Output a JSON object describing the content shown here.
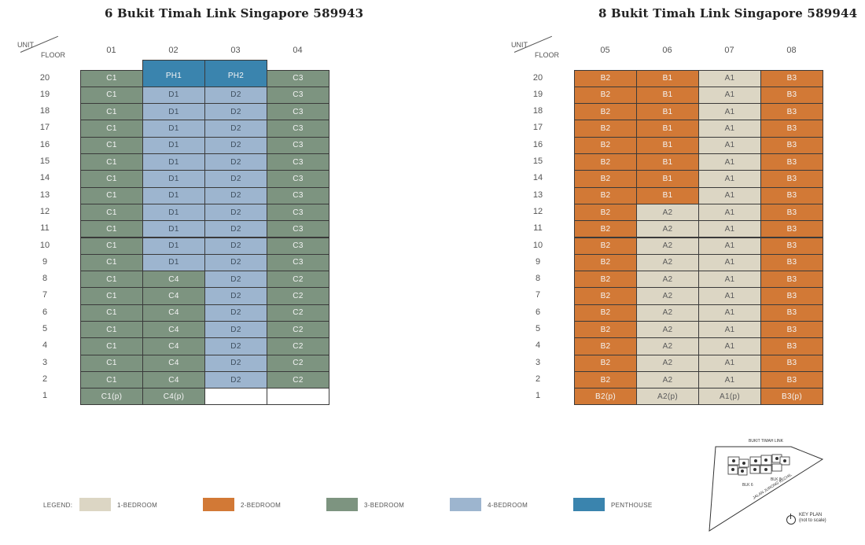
{
  "colors": {
    "1-bedroom": "#dcd6c4",
    "2-bedroom": "#d27936",
    "3-bedroom": "#7d9480",
    "4-bedroom": "#9db5cf",
    "penthouse": "#3a84ae",
    "empty": "#ffffff"
  },
  "corner": {
    "unit": "UNIT",
    "floor": "FLOOR"
  },
  "blocks": [
    {
      "title": "6 Bukit Timah Link Singapore 589943",
      "columns": [
        "01",
        "02",
        "03",
        "04"
      ],
      "rows": [
        {
          "floor": "20",
          "units": [
            {
              "label": "C1",
              "type": "3-bedroom"
            },
            {
              "label": "PH1",
              "type": "penthouse"
            },
            {
              "label": "PH2",
              "type": "penthouse"
            },
            {
              "label": "C3",
              "type": "3-bedroom"
            }
          ]
        },
        {
          "floor": "19",
          "units": [
            {
              "label": "C1",
              "type": "3-bedroom"
            },
            {
              "label": "D1",
              "type": "4-bedroom"
            },
            {
              "label": "D2",
              "type": "4-bedroom"
            },
            {
              "label": "C3",
              "type": "3-bedroom"
            }
          ]
        },
        {
          "floor": "18",
          "units": [
            {
              "label": "C1",
              "type": "3-bedroom"
            },
            {
              "label": "D1",
              "type": "4-bedroom"
            },
            {
              "label": "D2",
              "type": "4-bedroom"
            },
            {
              "label": "C3",
              "type": "3-bedroom"
            }
          ]
        },
        {
          "floor": "17",
          "units": [
            {
              "label": "C1",
              "type": "3-bedroom"
            },
            {
              "label": "D1",
              "type": "4-bedroom"
            },
            {
              "label": "D2",
              "type": "4-bedroom"
            },
            {
              "label": "C3",
              "type": "3-bedroom"
            }
          ]
        },
        {
          "floor": "16",
          "units": [
            {
              "label": "C1",
              "type": "3-bedroom"
            },
            {
              "label": "D1",
              "type": "4-bedroom"
            },
            {
              "label": "D2",
              "type": "4-bedroom"
            },
            {
              "label": "C3",
              "type": "3-bedroom"
            }
          ]
        },
        {
          "floor": "15",
          "units": [
            {
              "label": "C1",
              "type": "3-bedroom"
            },
            {
              "label": "D1",
              "type": "4-bedroom"
            },
            {
              "label": "D2",
              "type": "4-bedroom"
            },
            {
              "label": "C3",
              "type": "3-bedroom"
            }
          ]
        },
        {
          "floor": "14",
          "units": [
            {
              "label": "C1",
              "type": "3-bedroom"
            },
            {
              "label": "D1",
              "type": "4-bedroom"
            },
            {
              "label": "D2",
              "type": "4-bedroom"
            },
            {
              "label": "C3",
              "type": "3-bedroom"
            }
          ]
        },
        {
          "floor": "13",
          "units": [
            {
              "label": "C1",
              "type": "3-bedroom"
            },
            {
              "label": "D1",
              "type": "4-bedroom"
            },
            {
              "label": "D2",
              "type": "4-bedroom"
            },
            {
              "label": "C3",
              "type": "3-bedroom"
            }
          ]
        },
        {
          "floor": "12",
          "units": [
            {
              "label": "C1",
              "type": "3-bedroom"
            },
            {
              "label": "D1",
              "type": "4-bedroom"
            },
            {
              "label": "D2",
              "type": "4-bedroom"
            },
            {
              "label": "C3",
              "type": "3-bedroom"
            }
          ]
        },
        {
          "floor": "11",
          "units": [
            {
              "label": "C1",
              "type": "3-bedroom"
            },
            {
              "label": "D1",
              "type": "4-bedroom"
            },
            {
              "label": "D2",
              "type": "4-bedroom"
            },
            {
              "label": "C3",
              "type": "3-bedroom"
            }
          ]
        },
        {
          "floor": "10",
          "units": [
            {
              "label": "C1",
              "type": "3-bedroom"
            },
            {
              "label": "D1",
              "type": "4-bedroom"
            },
            {
              "label": "D2",
              "type": "4-bedroom"
            },
            {
              "label": "C3",
              "type": "3-bedroom"
            }
          ]
        },
        {
          "floor": "9",
          "units": [
            {
              "label": "C1",
              "type": "3-bedroom"
            },
            {
              "label": "D1",
              "type": "4-bedroom"
            },
            {
              "label": "D2",
              "type": "4-bedroom"
            },
            {
              "label": "C3",
              "type": "3-bedroom"
            }
          ]
        },
        {
          "floor": "8",
          "units": [
            {
              "label": "C1",
              "type": "3-bedroom"
            },
            {
              "label": "C4",
              "type": "3-bedroom"
            },
            {
              "label": "D2",
              "type": "4-bedroom"
            },
            {
              "label": "C2",
              "type": "3-bedroom"
            }
          ]
        },
        {
          "floor": "7",
          "units": [
            {
              "label": "C1",
              "type": "3-bedroom"
            },
            {
              "label": "C4",
              "type": "3-bedroom"
            },
            {
              "label": "D2",
              "type": "4-bedroom"
            },
            {
              "label": "C2",
              "type": "3-bedroom"
            }
          ]
        },
        {
          "floor": "6",
          "units": [
            {
              "label": "C1",
              "type": "3-bedroom"
            },
            {
              "label": "C4",
              "type": "3-bedroom"
            },
            {
              "label": "D2",
              "type": "4-bedroom"
            },
            {
              "label": "C2",
              "type": "3-bedroom"
            }
          ]
        },
        {
          "floor": "5",
          "units": [
            {
              "label": "C1",
              "type": "3-bedroom"
            },
            {
              "label": "C4",
              "type": "3-bedroom"
            },
            {
              "label": "D2",
              "type": "4-bedroom"
            },
            {
              "label": "C2",
              "type": "3-bedroom"
            }
          ]
        },
        {
          "floor": "4",
          "units": [
            {
              "label": "C1",
              "type": "3-bedroom"
            },
            {
              "label": "C4",
              "type": "3-bedroom"
            },
            {
              "label": "D2",
              "type": "4-bedroom"
            },
            {
              "label": "C2",
              "type": "3-bedroom"
            }
          ]
        },
        {
          "floor": "3",
          "units": [
            {
              "label": "C1",
              "type": "3-bedroom"
            },
            {
              "label": "C4",
              "type": "3-bedroom"
            },
            {
              "label": "D2",
              "type": "4-bedroom"
            },
            {
              "label": "C2",
              "type": "3-bedroom"
            }
          ]
        },
        {
          "floor": "2",
          "units": [
            {
              "label": "C1",
              "type": "3-bedroom"
            },
            {
              "label": "C4",
              "type": "3-bedroom"
            },
            {
              "label": "D2",
              "type": "4-bedroom"
            },
            {
              "label": "C2",
              "type": "3-bedroom"
            }
          ]
        },
        {
          "floor": "1",
          "units": [
            {
              "label": "C1(p)",
              "type": "3-bedroom"
            },
            {
              "label": "C4(p)",
              "type": "3-bedroom"
            },
            {
              "label": "",
              "type": "empty"
            },
            {
              "label": "",
              "type": "empty"
            }
          ]
        }
      ]
    },
    {
      "title": "8 Bukit Timah Link Singapore 589944",
      "columns": [
        "05",
        "06",
        "07",
        "08"
      ],
      "rows": [
        {
          "floor": "20",
          "units": [
            {
              "label": "B2",
              "type": "2-bedroom"
            },
            {
              "label": "B1",
              "type": "2-bedroom"
            },
            {
              "label": "A1",
              "type": "1-bedroom"
            },
            {
              "label": "B3",
              "type": "2-bedroom"
            }
          ]
        },
        {
          "floor": "19",
          "units": [
            {
              "label": "B2",
              "type": "2-bedroom"
            },
            {
              "label": "B1",
              "type": "2-bedroom"
            },
            {
              "label": "A1",
              "type": "1-bedroom"
            },
            {
              "label": "B3",
              "type": "2-bedroom"
            }
          ]
        },
        {
          "floor": "18",
          "units": [
            {
              "label": "B2",
              "type": "2-bedroom"
            },
            {
              "label": "B1",
              "type": "2-bedroom"
            },
            {
              "label": "A1",
              "type": "1-bedroom"
            },
            {
              "label": "B3",
              "type": "2-bedroom"
            }
          ]
        },
        {
          "floor": "17",
          "units": [
            {
              "label": "B2",
              "type": "2-bedroom"
            },
            {
              "label": "B1",
              "type": "2-bedroom"
            },
            {
              "label": "A1",
              "type": "1-bedroom"
            },
            {
              "label": "B3",
              "type": "2-bedroom"
            }
          ]
        },
        {
          "floor": "16",
          "units": [
            {
              "label": "B2",
              "type": "2-bedroom"
            },
            {
              "label": "B1",
              "type": "2-bedroom"
            },
            {
              "label": "A1",
              "type": "1-bedroom"
            },
            {
              "label": "B3",
              "type": "2-bedroom"
            }
          ]
        },
        {
          "floor": "15",
          "units": [
            {
              "label": "B2",
              "type": "2-bedroom"
            },
            {
              "label": "B1",
              "type": "2-bedroom"
            },
            {
              "label": "A1",
              "type": "1-bedroom"
            },
            {
              "label": "B3",
              "type": "2-bedroom"
            }
          ]
        },
        {
          "floor": "14",
          "units": [
            {
              "label": "B2",
              "type": "2-bedroom"
            },
            {
              "label": "B1",
              "type": "2-bedroom"
            },
            {
              "label": "A1",
              "type": "1-bedroom"
            },
            {
              "label": "B3",
              "type": "2-bedroom"
            }
          ]
        },
        {
          "floor": "13",
          "units": [
            {
              "label": "B2",
              "type": "2-bedroom"
            },
            {
              "label": "B1",
              "type": "2-bedroom"
            },
            {
              "label": "A1",
              "type": "1-bedroom"
            },
            {
              "label": "B3",
              "type": "2-bedroom"
            }
          ]
        },
        {
          "floor": "12",
          "units": [
            {
              "label": "B2",
              "type": "2-bedroom"
            },
            {
              "label": "A2",
              "type": "1-bedroom"
            },
            {
              "label": "A1",
              "type": "1-bedroom"
            },
            {
              "label": "B3",
              "type": "2-bedroom"
            }
          ]
        },
        {
          "floor": "11",
          "units": [
            {
              "label": "B2",
              "type": "2-bedroom"
            },
            {
              "label": "A2",
              "type": "1-bedroom"
            },
            {
              "label": "A1",
              "type": "1-bedroom"
            },
            {
              "label": "B3",
              "type": "2-bedroom"
            }
          ]
        },
        {
          "floor": "10",
          "units": [
            {
              "label": "B2",
              "type": "2-bedroom"
            },
            {
              "label": "A2",
              "type": "1-bedroom"
            },
            {
              "label": "A1",
              "type": "1-bedroom"
            },
            {
              "label": "B3",
              "type": "2-bedroom"
            }
          ]
        },
        {
          "floor": "9",
          "units": [
            {
              "label": "B2",
              "type": "2-bedroom"
            },
            {
              "label": "A2",
              "type": "1-bedroom"
            },
            {
              "label": "A1",
              "type": "1-bedroom"
            },
            {
              "label": "B3",
              "type": "2-bedroom"
            }
          ]
        },
        {
          "floor": "8",
          "units": [
            {
              "label": "B2",
              "type": "2-bedroom"
            },
            {
              "label": "A2",
              "type": "1-bedroom"
            },
            {
              "label": "A1",
              "type": "1-bedroom"
            },
            {
              "label": "B3",
              "type": "2-bedroom"
            }
          ]
        },
        {
          "floor": "7",
          "units": [
            {
              "label": "B2",
              "type": "2-bedroom"
            },
            {
              "label": "A2",
              "type": "1-bedroom"
            },
            {
              "label": "A1",
              "type": "1-bedroom"
            },
            {
              "label": "B3",
              "type": "2-bedroom"
            }
          ]
        },
        {
          "floor": "6",
          "units": [
            {
              "label": "B2",
              "type": "2-bedroom"
            },
            {
              "label": "A2",
              "type": "1-bedroom"
            },
            {
              "label": "A1",
              "type": "1-bedroom"
            },
            {
              "label": "B3",
              "type": "2-bedroom"
            }
          ]
        },
        {
          "floor": "5",
          "units": [
            {
              "label": "B2",
              "type": "2-bedroom"
            },
            {
              "label": "A2",
              "type": "1-bedroom"
            },
            {
              "label": "A1",
              "type": "1-bedroom"
            },
            {
              "label": "B3",
              "type": "2-bedroom"
            }
          ]
        },
        {
          "floor": "4",
          "units": [
            {
              "label": "B2",
              "type": "2-bedroom"
            },
            {
              "label": "A2",
              "type": "1-bedroom"
            },
            {
              "label": "A1",
              "type": "1-bedroom"
            },
            {
              "label": "B3",
              "type": "2-bedroom"
            }
          ]
        },
        {
          "floor": "3",
          "units": [
            {
              "label": "B2",
              "type": "2-bedroom"
            },
            {
              "label": "A2",
              "type": "1-bedroom"
            },
            {
              "label": "A1",
              "type": "1-bedroom"
            },
            {
              "label": "B3",
              "type": "2-bedroom"
            }
          ]
        },
        {
          "floor": "2",
          "units": [
            {
              "label": "B2",
              "type": "2-bedroom"
            },
            {
              "label": "A2",
              "type": "1-bedroom"
            },
            {
              "label": "A1",
              "type": "1-bedroom"
            },
            {
              "label": "B3",
              "type": "2-bedroom"
            }
          ]
        },
        {
          "floor": "1",
          "units": [
            {
              "label": "B2(p)",
              "type": "2-bedroom"
            },
            {
              "label": "A2(p)",
              "type": "1-bedroom"
            },
            {
              "label": "A1(p)",
              "type": "1-bedroom"
            },
            {
              "label": "B3(p)",
              "type": "2-bedroom"
            }
          ]
        }
      ]
    }
  ],
  "legend": {
    "title": "LEGEND:",
    "items": [
      {
        "label": "1-BEDROOM",
        "type": "1-bedroom"
      },
      {
        "label": "2-BEDROOM",
        "type": "2-bedroom"
      },
      {
        "label": "3-BEDROOM",
        "type": "3-bedroom"
      },
      {
        "label": "4-BEDROOM",
        "type": "4-bedroom"
      },
      {
        "label": "PENTHOUSE",
        "type": "penthouse"
      }
    ]
  },
  "keyplan": {
    "road_top": "BUKIT TIMAH LINK",
    "road_bottom": "JALAN JURONG KECHIL",
    "block_6": "BLK 6",
    "block_8": "BLK 8",
    "title": "KEY PLAN",
    "note": "(not to scale)",
    "north_icon": "compass-north-icon"
  }
}
